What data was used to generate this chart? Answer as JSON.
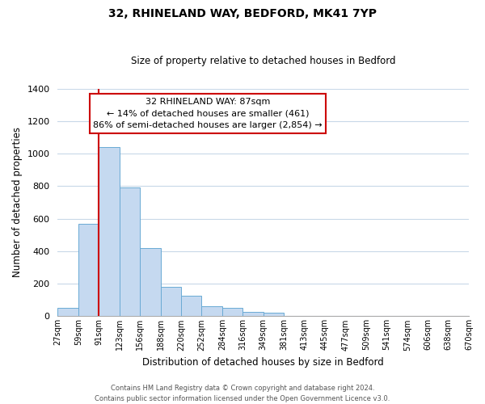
{
  "title": "32, RHINELAND WAY, BEDFORD, MK41 7YP",
  "subtitle": "Size of property relative to detached houses in Bedford",
  "xlabel": "Distribution of detached houses by size in Bedford",
  "ylabel": "Number of detached properties",
  "bin_labels": [
    "27sqm",
    "59sqm",
    "91sqm",
    "123sqm",
    "156sqm",
    "188sqm",
    "220sqm",
    "252sqm",
    "284sqm",
    "316sqm",
    "349sqm",
    "381sqm",
    "413sqm",
    "445sqm",
    "477sqm",
    "509sqm",
    "541sqm",
    "574sqm",
    "606sqm",
    "638sqm",
    "670sqm"
  ],
  "bar_heights": [
    50,
    570,
    1040,
    790,
    420,
    180,
    125,
    60,
    50,
    25,
    20,
    0,
    0,
    0,
    0,
    0,
    0,
    0,
    0,
    0
  ],
  "bar_color": "#c5d9f0",
  "bar_edgecolor": "#6aaad4",
  "vline_x": 2,
  "vline_color": "#cc0000",
  "ylim": [
    0,
    1400
  ],
  "yticks": [
    0,
    200,
    400,
    600,
    800,
    1000,
    1200,
    1400
  ],
  "annotation_title": "32 RHINELAND WAY: 87sqm",
  "annotation_line1": "← 14% of detached houses are smaller (461)",
  "annotation_line2": "86% of semi-detached houses are larger (2,854) →",
  "annotation_box_color": "#ffffff",
  "annotation_box_edgecolor": "#cc0000",
  "footer_line1": "Contains HM Land Registry data © Crown copyright and database right 2024.",
  "footer_line2": "Contains public sector information licensed under the Open Government Licence v3.0.",
  "grid_color": "#c8d8e8",
  "background_color": "#ffffff",
  "figsize": [
    6.0,
    5.0
  ],
  "dpi": 100
}
